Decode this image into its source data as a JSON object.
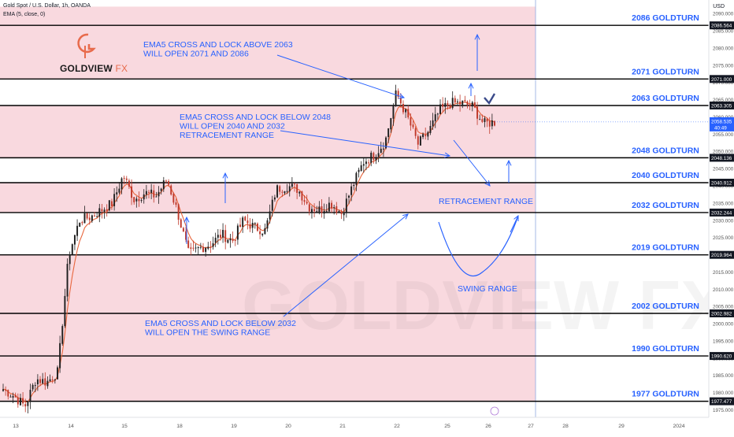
{
  "header": {
    "symbol": "Gold Spot / U.S. Dollar, 1h, OANDA",
    "indicator": "EMA (5, close, 0)",
    "currency": "USD"
  },
  "logo": {
    "brand": "GOLDVIEW",
    "suffix": "FX"
  },
  "watermark": "GOLDVIEW FX",
  "colors": {
    "band": "#f9d9df",
    "bull": "#1f1f1f",
    "bear": "#c0392b",
    "ema": "#e8663d",
    "level_label": "#2962ff",
    "annotation": "#2962ff",
    "price_tag": "#131722",
    "current_price_tag": "#2962ff"
  },
  "chart_data": {
    "type": "candlestick",
    "title": "Gold Spot / U.S. Dollar, 1h, OANDA",
    "ylim": [
      1972,
      2092
    ],
    "y_ticks": [
      1975,
      1980,
      1985,
      1990,
      1995,
      2000,
      2005,
      2010,
      2015,
      2020,
      2025,
      2030,
      2035,
      2040,
      2045,
      2050,
      2055,
      2060,
      2065,
      2070,
      2075,
      2080,
      2085,
      2090
    ],
    "x_ticks": [
      "13",
      "14",
      "15",
      "18",
      "19",
      "20",
      "21",
      "22",
      "25",
      "26",
      "27",
      "28",
      "29",
      "2024"
    ],
    "levels": [
      {
        "value": 2086.564,
        "tag": "2086.564",
        "label": "2086 GOLDTURN"
      },
      {
        "value": 2071.0,
        "tag": "2071.000",
        "label": "2071 GOLDTURN"
      },
      {
        "value": 2063.305,
        "tag": "2063.305",
        "label": "2063 GOLDTURN"
      },
      {
        "value": 2048.136,
        "tag": "2048.136",
        "label": "2048 GOLDTURN"
      },
      {
        "value": 2040.912,
        "tag": "2040.912",
        "label": "2040 GOLDTURN"
      },
      {
        "value": 2032.244,
        "tag": "2032.244",
        "label": "2032 GOLDTURN"
      },
      {
        "value": 2019.964,
        "tag": "2019.964",
        "label": "2019 GOLDTURN"
      },
      {
        "value": 2002.982,
        "tag": "2002.982",
        "label": "2002 GOLDTURN"
      },
      {
        "value": 1990.62,
        "tag": "1990.620",
        "label": "1990 GOLDTURN"
      },
      {
        "value": 1977.477,
        "tag": "1977.477",
        "label": "1977 GOLDTURN"
      }
    ],
    "bands": [
      [
        2071.0,
        2092.0
      ],
      [
        2048.136,
        2063.305
      ],
      [
        2032.244,
        2040.912
      ],
      [
        1977.477,
        2019.964
      ]
    ],
    "current_price": {
      "value": 2058.535,
      "tag": "2058.535",
      "countdown": "40:49"
    },
    "price_path": [
      [
        1983,
        1981
      ],
      [
        1982,
        1979
      ],
      [
        1977,
        1976
      ],
      [
        1981,
        1984
      ],
      [
        1984,
        1983
      ],
      [
        1982,
        1986
      ],
      [
        1992,
        2020
      ],
      [
        2026,
        2030
      ],
      [
        2032,
        2031
      ],
      [
        2034,
        2033
      ],
      [
        2037,
        2035
      ],
      [
        2040,
        2043
      ],
      [
        2046,
        2036
      ],
      [
        2034,
        2038
      ],
      [
        2035,
        2037
      ],
      [
        2041,
        2042
      ],
      [
        2036,
        2032
      ],
      [
        2031,
        2020
      ],
      [
        2018,
        2022
      ],
      [
        2024,
        2023
      ],
      [
        2021,
        2026
      ],
      [
        2027,
        2024
      ],
      [
        2022,
        2030
      ],
      [
        2031,
        2028
      ],
      [
        2025,
        2027
      ],
      [
        2030,
        2039
      ],
      [
        2041,
        2040
      ],
      [
        2038,
        2039
      ],
      [
        2036,
        2034
      ],
      [
        2032,
        2033
      ],
      [
        2031,
        2035
      ],
      [
        2034,
        2032
      ],
      [
        2036,
        2040
      ],
      [
        2044,
        2047
      ],
      [
        2050,
        2049
      ],
      [
        2051,
        2053
      ],
      [
        2055,
        2067
      ],
      [
        2070,
        2060
      ],
      [
        2058,
        2052
      ],
      [
        2054,
        2056
      ],
      [
        2060,
        2062
      ],
      [
        2065,
        2064
      ],
      [
        2063,
        2064
      ],
      [
        2062,
        2063
      ],
      [
        2064,
        2058
      ],
      [
        2059,
        2058.535
      ]
    ],
    "annotations": [
      {
        "lines": [
          "EMA5 CROSS AND LOCK ABOVE 2063",
          "WILL OPEN 2071 AND 2086"
        ]
      },
      {
        "lines": [
          "EMA5 CROSS AND LOCK BELOW 2048",
          "WILL OPEN 2040 AND 2032",
          "RETRACEMENT RANGE"
        ]
      },
      {
        "lines": [
          "EMA5 CROSS AND LOCK BELOW 2032",
          "WILL OPEN THE SWING RANGE"
        ]
      },
      {
        "lines": [
          "RETRACEMENT RANGE"
        ]
      },
      {
        "lines": [
          "SWING RANGE"
        ]
      }
    ]
  }
}
